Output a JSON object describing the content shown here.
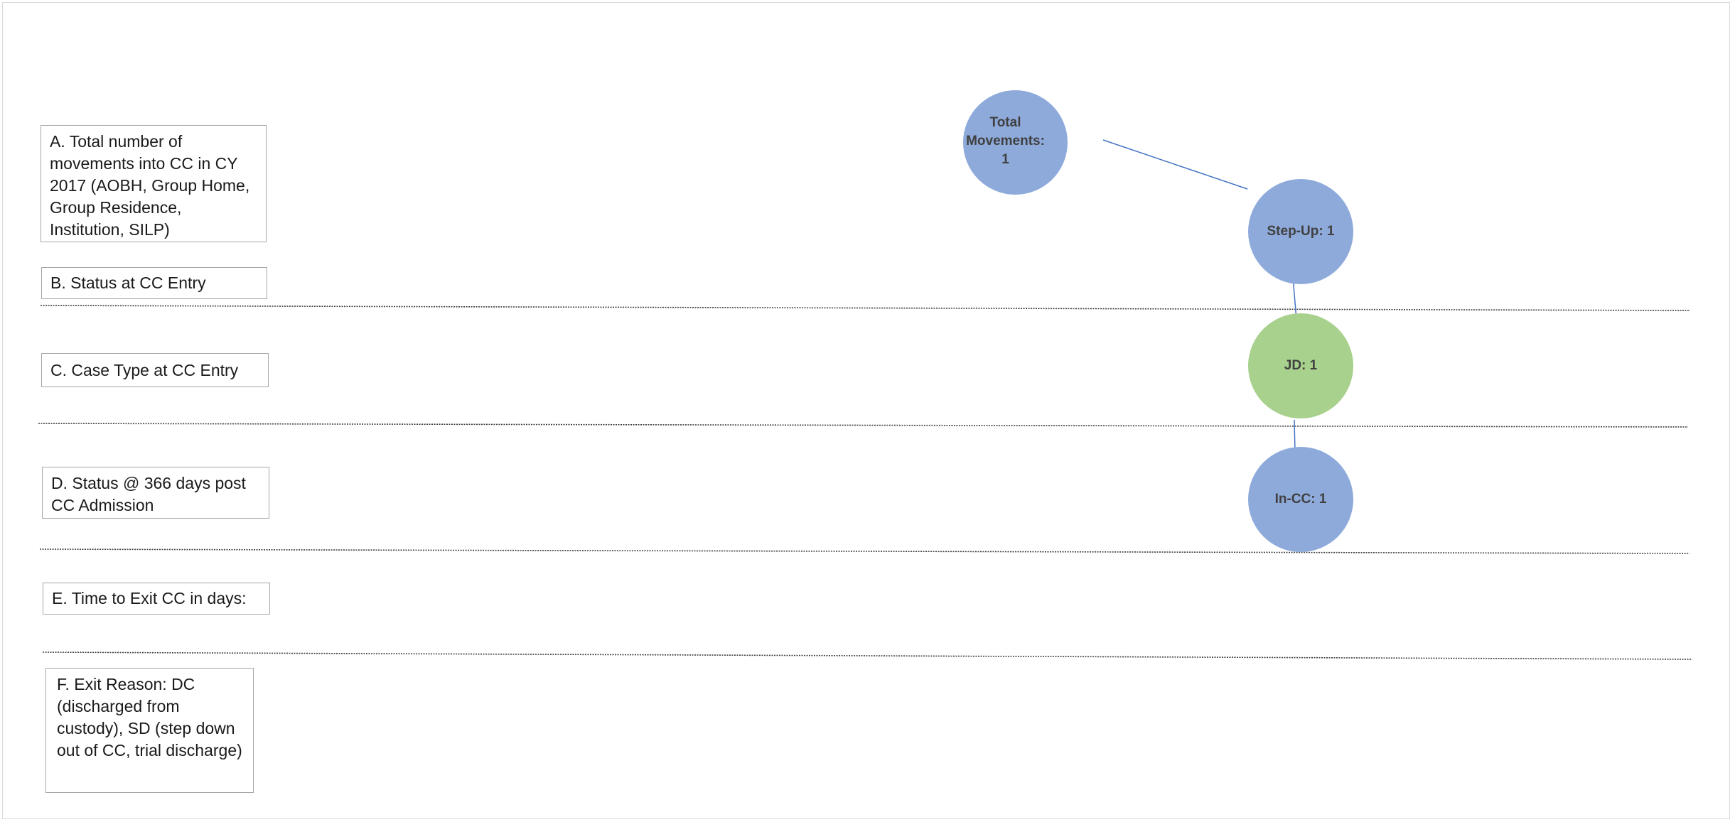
{
  "sections": {
    "a": "A. Total number of movements into CC in CY 2017 (AOBH, Group Home, Group Residence, Institution, SILP)",
    "b": "B. Status at CC Entry",
    "c": "C. Case Type at CC Entry",
    "d": "D. Status @ 366 days post CC Admission",
    "e": "E. Time to Exit CC in days:",
    "f": "F. Exit Reason: DC (discharged from custody), SD (step down out of CC, trial discharge)"
  },
  "nodes": {
    "total": {
      "label": "Total Movements: 1",
      "color": "#8eaadb"
    },
    "step_up": {
      "label": "Step-Up: 1",
      "color": "#8eaadb"
    },
    "jd": {
      "label": "JD: 1",
      "color": "#a9d18e"
    },
    "in_cc": {
      "label": "In-CC: 1",
      "color": "#8eaadb"
    }
  },
  "colors": {
    "connector": "#4472c4",
    "divider": "#404040",
    "box_border": "#a6a6a6"
  }
}
